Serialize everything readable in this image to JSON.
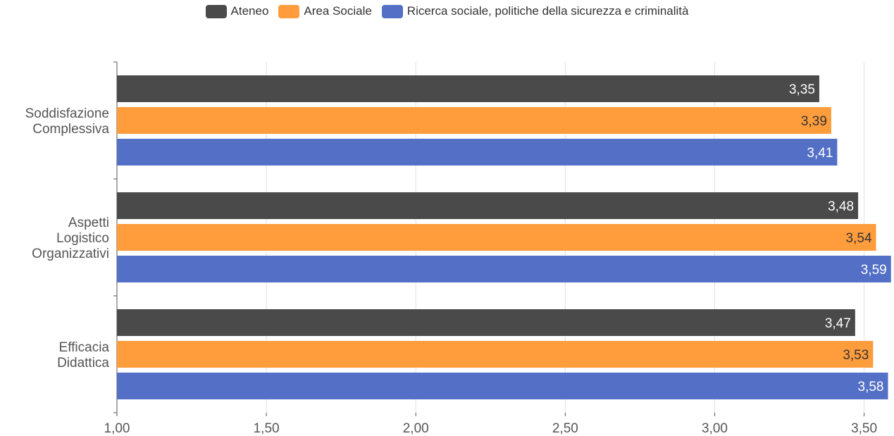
{
  "chart_data": {
    "type": "bar",
    "orientation": "horizontal",
    "categories": [
      [
        "Soddisfazione",
        "Complessiva"
      ],
      [
        "Aspetti",
        "Logistico",
        "Organizzativi"
      ],
      [
        "Efficacia",
        "Didattica"
      ]
    ],
    "series": [
      {
        "name": "Ateneo",
        "color": "#4a4a4a",
        "label_color": "#ffffff",
        "values": [
          3.35,
          3.48,
          3.47
        ],
        "labels": [
          "3,35",
          "3,48",
          "3,47"
        ]
      },
      {
        "name": "Area Sociale",
        "color": "#ff9c3c",
        "label_color": "#333333",
        "values": [
          3.39,
          3.54,
          3.53
        ],
        "labels": [
          "3,39",
          "3,54",
          "3,53"
        ]
      },
      {
        "name": "Ricerca sociale, politiche della sicurezza e criminalità",
        "color": "#5470c6",
        "label_color": "#ffffff",
        "values": [
          3.41,
          3.59,
          3.58
        ],
        "labels": [
          "3,41",
          "3,59",
          "3,58"
        ]
      }
    ],
    "xlim": [
      1.0,
      3.6
    ],
    "xticks": [
      1.0,
      1.5,
      2.0,
      2.5,
      3.0,
      3.5
    ],
    "xtick_labels": [
      "1,00",
      "1,50",
      "2,00",
      "2,50",
      "3,00",
      "3,50"
    ],
    "grid": true,
    "legend_position": "top-center"
  }
}
